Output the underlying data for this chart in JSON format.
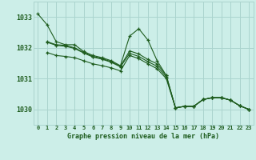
{
  "background_color": "#cceee8",
  "grid_color": "#aad4ce",
  "line_color": "#1e5c1e",
  "marker_color": "#1e5c1e",
  "xlabel": "Graphe pression niveau de la mer (hPa)",
  "xlabel_color": "#1e5c1e",
  "xlim": [
    -0.5,
    23.5
  ],
  "ylim": [
    1029.5,
    1033.5
  ],
  "yticks": [
    1030,
    1031,
    1032,
    1033
  ],
  "xticks": [
    0,
    1,
    2,
    3,
    4,
    5,
    6,
    7,
    8,
    9,
    10,
    11,
    12,
    13,
    14,
    15,
    16,
    17,
    18,
    19,
    20,
    21,
    22,
    23
  ],
  "series": [
    {
      "x": [
        0,
        1,
        2,
        3,
        4,
        5,
        6,
        7,
        8,
        9,
        10,
        11,
        12,
        13,
        14,
        15,
        16,
        17,
        18,
        19,
        20,
        21,
        22,
        23
      ],
      "y": [
        1033.1,
        1032.75,
        1032.2,
        1032.1,
        1032.1,
        1031.88,
        1031.75,
        1031.68,
        1031.58,
        1031.42,
        1032.38,
        1032.62,
        1032.25,
        1031.58,
        1031.1,
        1030.05,
        1030.1,
        1030.1,
        1030.32,
        1030.38,
        1030.38,
        1030.3,
        1030.12,
        1030.0
      ]
    },
    {
      "x": [
        1,
        2,
        3,
        4,
        5,
        6,
        7,
        8,
        9,
        10,
        11,
        12,
        13,
        14,
        15,
        16,
        17,
        18,
        19,
        20,
        21,
        22,
        23
      ],
      "y": [
        1032.2,
        1032.1,
        1032.08,
        1032.0,
        1031.85,
        1031.72,
        1031.65,
        1031.55,
        1031.4,
        1031.9,
        1031.8,
        1031.62,
        1031.48,
        1031.1,
        1030.05,
        1030.1,
        1030.1,
        1030.32,
        1030.38,
        1030.38,
        1030.3,
        1030.12,
        1030.0
      ]
    },
    {
      "x": [
        1,
        2,
        3,
        4,
        5,
        6,
        7,
        8,
        9,
        10,
        11,
        12,
        13,
        14,
        15,
        16,
        17,
        18,
        19,
        20,
        21,
        22,
        23
      ],
      "y": [
        1032.18,
        1032.08,
        1032.05,
        1031.98,
        1031.83,
        1031.7,
        1031.63,
        1031.53,
        1031.38,
        1031.82,
        1031.72,
        1031.55,
        1031.4,
        1031.05,
        1030.05,
        1030.1,
        1030.1,
        1030.32,
        1030.38,
        1030.38,
        1030.3,
        1030.12,
        1030.0
      ]
    },
    {
      "x": [
        1,
        2,
        3,
        4,
        5,
        6,
        7,
        8,
        9,
        10,
        11,
        12,
        13,
        14,
        15,
        16,
        17,
        18,
        19,
        20,
        21,
        22,
        23
      ],
      "y": [
        1031.85,
        1031.75,
        1031.72,
        1031.68,
        1031.58,
        1031.48,
        1031.42,
        1031.35,
        1031.25,
        1031.75,
        1031.65,
        1031.48,
        1031.32,
        1031.0,
        1030.05,
        1030.1,
        1030.1,
        1030.32,
        1030.38,
        1030.38,
        1030.3,
        1030.12,
        1030.0
      ]
    }
  ]
}
